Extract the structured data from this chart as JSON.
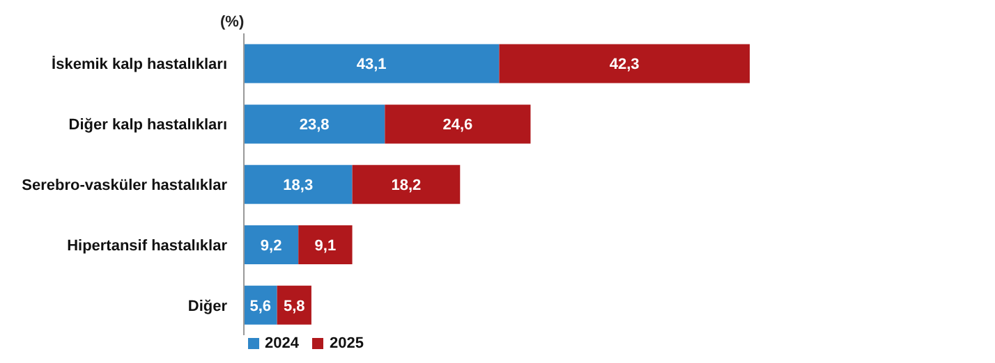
{
  "chart_data": {
    "type": "bar",
    "orientation": "horizontal",
    "stacked": true,
    "ylabel": "(%)",
    "categories": [
      "İskemik kalp hastalıkları",
      "Diğer kalp hastalıkları",
      "Serebro-vasküler hastalıklar",
      "Hipertansif hastalıklar",
      "Diğer"
    ],
    "series": [
      {
        "name": "2024",
        "color": "#2e86c8",
        "values": [
          43.1,
          23.8,
          18.3,
          9.2,
          5.6
        ],
        "value_labels": [
          "43,1",
          "23,8",
          "18,3",
          "9,2",
          "5,6"
        ]
      },
      {
        "name": "2025",
        "color": "#b0181c",
        "values": [
          42.3,
          24.6,
          18.2,
          9.1,
          5.8
        ],
        "value_labels": [
          "42,3",
          "24,6",
          "18,2",
          "9,1",
          "5,8"
        ]
      }
    ],
    "legend": "bottom",
    "grid": false
  }
}
